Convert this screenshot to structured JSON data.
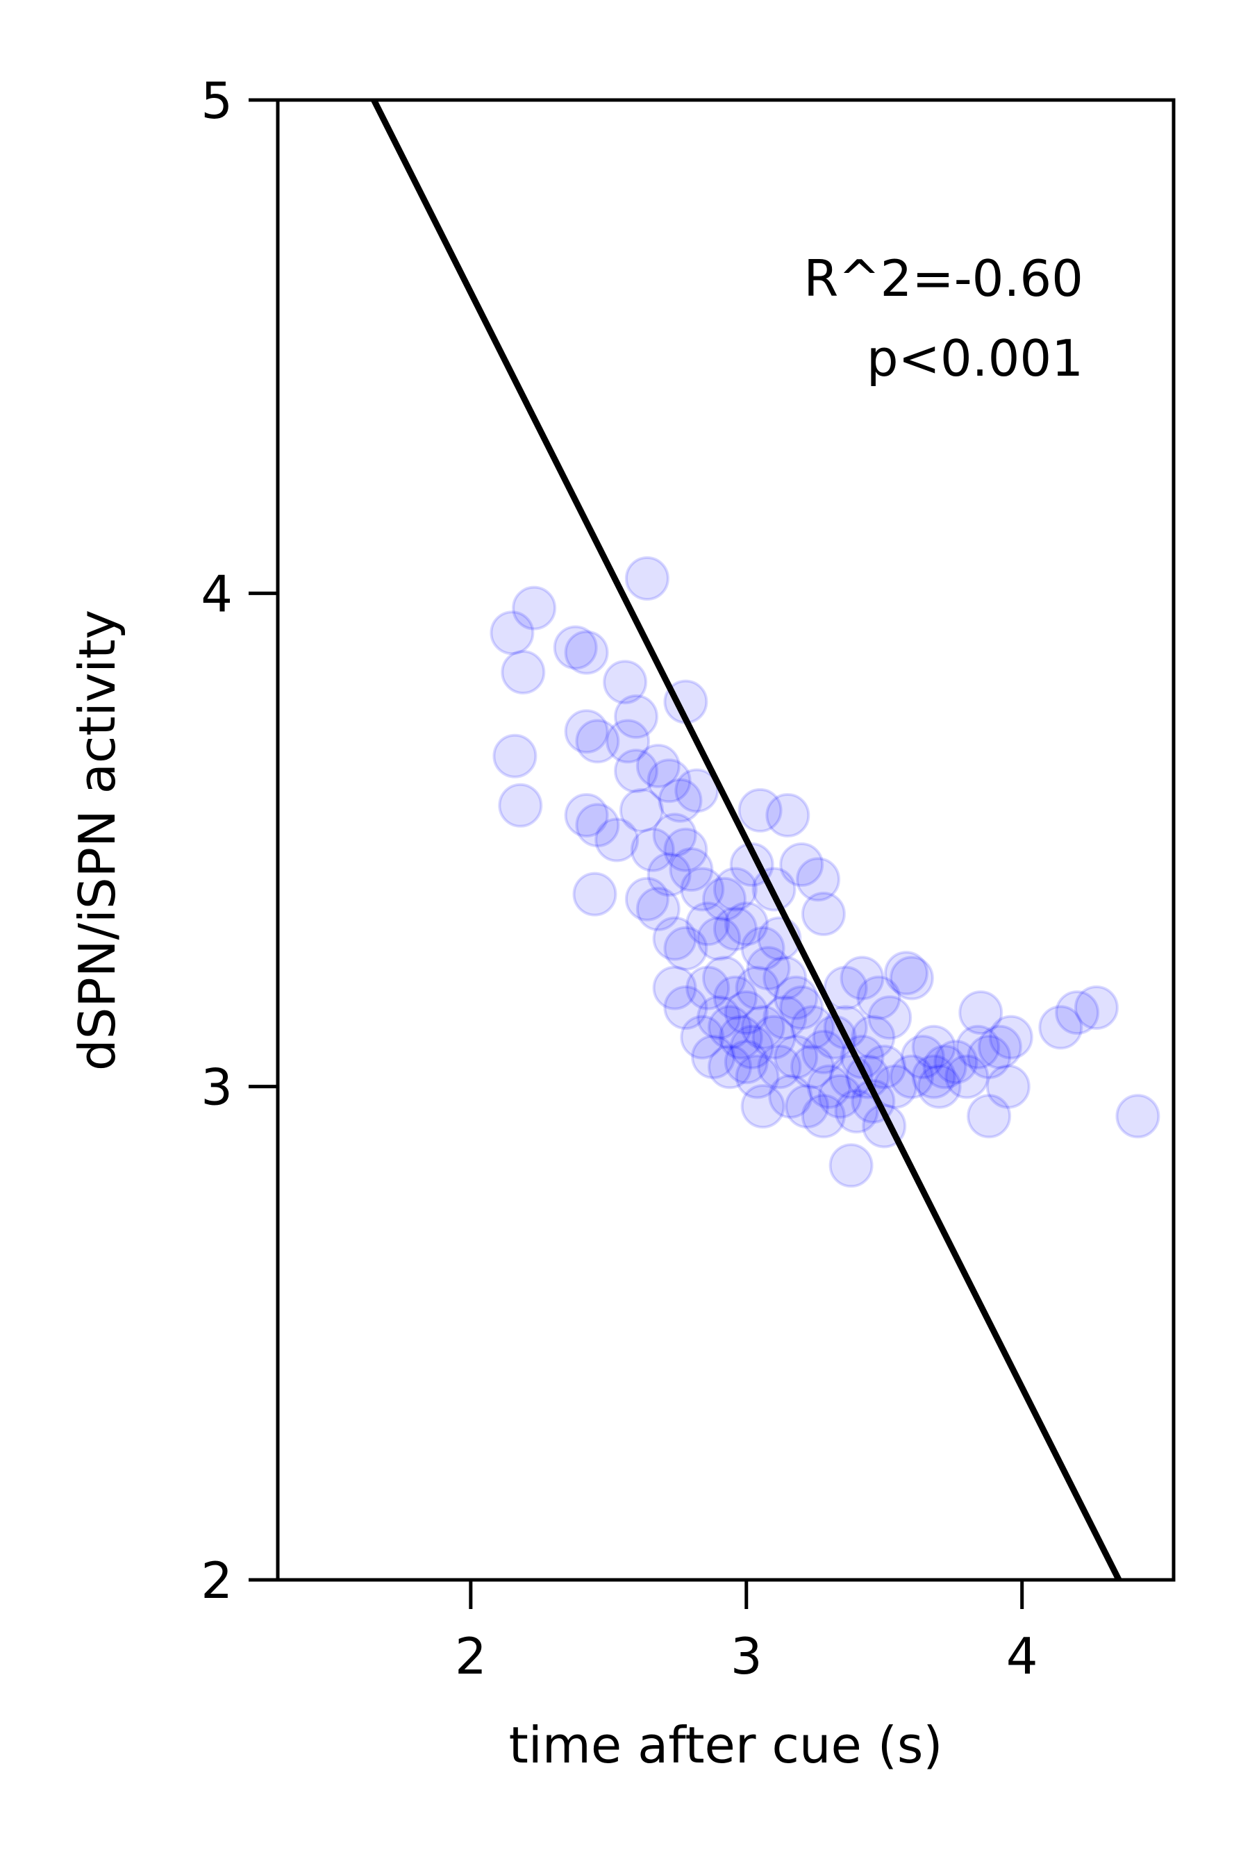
{
  "chart_data": {
    "type": "scatter",
    "title": "",
    "xlabel": "time after cue (s)",
    "ylabel": "dSPN/iSPN activity",
    "xlim": [
      1.3,
      4.55
    ],
    "ylim": [
      2,
      5
    ],
    "xticks": [
      2,
      3,
      4
    ],
    "xtick_labels": [
      "2",
      "3",
      "4"
    ],
    "yticks": [
      2,
      3,
      4,
      5
    ],
    "ytick_labels": [
      "2",
      "3",
      "4",
      "5"
    ],
    "grid": false,
    "legend": "none",
    "marker_color": "#0000ff",
    "marker_alpha": 0.12,
    "fit_line_color": "#000000",
    "annotations": [
      "R^2=-0.60",
      "p<0.001"
    ],
    "fit_line": {
      "slope": -1.11,
      "intercept": 6.83
    },
    "points": [
      [
        2.15,
        3.92
      ],
      [
        2.23,
        3.97
      ],
      [
        2.19,
        3.84
      ],
      [
        2.38,
        3.89
      ],
      [
        2.42,
        3.88
      ],
      [
        2.16,
        3.67
      ],
      [
        2.18,
        3.57
      ],
      [
        2.64,
        4.03
      ],
      [
        2.42,
        3.72
      ],
      [
        2.46,
        3.7
      ],
      [
        2.56,
        3.82
      ],
      [
        2.6,
        3.75
      ],
      [
        2.57,
        3.7
      ],
      [
        2.6,
        3.64
      ],
      [
        2.78,
        3.78
      ],
      [
        2.68,
        3.65
      ],
      [
        2.72,
        3.62
      ],
      [
        2.76,
        3.58
      ],
      [
        2.82,
        3.6
      ],
      [
        2.42,
        3.55
      ],
      [
        2.46,
        3.53
      ],
      [
        2.53,
        3.5
      ],
      [
        2.62,
        3.56
      ],
      [
        2.66,
        3.48
      ],
      [
        2.74,
        3.51
      ],
      [
        2.78,
        3.48
      ],
      [
        2.72,
        3.43
      ],
      [
        2.8,
        3.44
      ],
      [
        2.84,
        3.4
      ],
      [
        2.45,
        3.39
      ],
      [
        2.64,
        3.38
      ],
      [
        2.68,
        3.36
      ],
      [
        2.74,
        3.3
      ],
      [
        2.78,
        3.28
      ],
      [
        2.86,
        3.33
      ],
      [
        2.92,
        3.38
      ],
      [
        2.96,
        3.4
      ],
      [
        3.05,
        3.56
      ],
      [
        3.15,
        3.55
      ],
      [
        3.02,
        3.45
      ],
      [
        3.1,
        3.4
      ],
      [
        3.2,
        3.45
      ],
      [
        3.26,
        3.42
      ],
      [
        3.28,
        3.35
      ],
      [
        2.9,
        3.3
      ],
      [
        2.96,
        3.32
      ],
      [
        3.0,
        3.33
      ],
      [
        3.06,
        3.28
      ],
      [
        3.12,
        3.3
      ],
      [
        2.74,
        3.2
      ],
      [
        2.78,
        3.16
      ],
      [
        2.86,
        3.2
      ],
      [
        2.92,
        3.22
      ],
      [
        2.96,
        3.18
      ],
      [
        3.0,
        3.15
      ],
      [
        3.04,
        3.2
      ],
      [
        3.08,
        3.24
      ],
      [
        3.14,
        3.22
      ],
      [
        3.18,
        3.18
      ],
      [
        2.84,
        3.1
      ],
      [
        2.9,
        3.14
      ],
      [
        2.94,
        3.12
      ],
      [
        2.98,
        3.1
      ],
      [
        3.02,
        3.08
      ],
      [
        3.06,
        3.12
      ],
      [
        3.1,
        3.1
      ],
      [
        3.14,
        3.14
      ],
      [
        3.2,
        3.16
      ],
      [
        3.24,
        3.12
      ],
      [
        2.88,
        3.06
      ],
      [
        2.94,
        3.04
      ],
      [
        3.0,
        3.05
      ],
      [
        3.04,
        3.02
      ],
      [
        3.12,
        3.04
      ],
      [
        3.18,
        3.06
      ],
      [
        3.24,
        3.04
      ],
      [
        3.28,
        3.07
      ],
      [
        3.32,
        3.1
      ],
      [
        3.36,
        3.12
      ],
      [
        3.06,
        2.96
      ],
      [
        3.16,
        2.98
      ],
      [
        3.22,
        2.96
      ],
      [
        3.28,
        2.94
      ],
      [
        3.3,
        3.0
      ],
      [
        3.34,
        2.98
      ],
      [
        3.38,
        3.02
      ],
      [
        3.42,
        3.06
      ],
      [
        3.46,
        3.1
      ],
      [
        3.36,
        3.2
      ],
      [
        3.42,
        3.22
      ],
      [
        3.48,
        3.18
      ],
      [
        3.52,
        3.14
      ],
      [
        3.58,
        3.23
      ],
      [
        3.6,
        3.22
      ],
      [
        3.44,
        3.02
      ],
      [
        3.5,
        3.04
      ],
      [
        3.54,
        3.0
      ],
      [
        3.6,
        3.02
      ],
      [
        3.64,
        3.06
      ],
      [
        3.68,
        3.08
      ],
      [
        3.72,
        3.04
      ],
      [
        3.7,
        3.0
      ],
      [
        3.76,
        3.05
      ],
      [
        3.8,
        3.02
      ],
      [
        3.84,
        3.08
      ],
      [
        3.88,
        3.06
      ],
      [
        3.92,
        3.08
      ],
      [
        3.96,
        3.1
      ],
      [
        3.85,
        3.15
      ],
      [
        3.95,
        3.0
      ],
      [
        3.88,
        2.94
      ],
      [
        3.4,
        2.95
      ],
      [
        3.46,
        2.97
      ],
      [
        3.5,
        2.92
      ],
      [
        3.38,
        2.84
      ],
      [
        4.14,
        3.12
      ],
      [
        4.2,
        3.15
      ],
      [
        4.27,
        3.16
      ],
      [
        4.42,
        2.94
      ],
      [
        3.68,
        3.02
      ]
    ]
  }
}
